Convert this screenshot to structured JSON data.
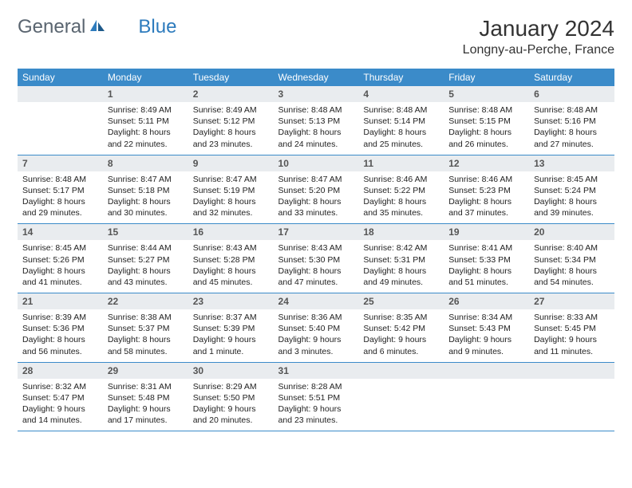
{
  "logo": {
    "text1": "General",
    "text2": "Blue"
  },
  "title": "January 2024",
  "location": "Longny-au-Perche, France",
  "colors": {
    "header_bg": "#3b8bc9",
    "header_text": "#ffffff",
    "daynum_bg": "#e9ecef",
    "rule": "#3b8bc9",
    "logo_gray": "#5a6570",
    "logo_blue": "#2d7bbd"
  },
  "day_headers": [
    "Sunday",
    "Monday",
    "Tuesday",
    "Wednesday",
    "Thursday",
    "Friday",
    "Saturday"
  ],
  "weeks": [
    [
      {
        "n": "",
        "sunrise": "",
        "sunset": "",
        "daylight": ""
      },
      {
        "n": "1",
        "sunrise": "Sunrise: 8:49 AM",
        "sunset": "Sunset: 5:11 PM",
        "daylight": "Daylight: 8 hours and 22 minutes."
      },
      {
        "n": "2",
        "sunrise": "Sunrise: 8:49 AM",
        "sunset": "Sunset: 5:12 PM",
        "daylight": "Daylight: 8 hours and 23 minutes."
      },
      {
        "n": "3",
        "sunrise": "Sunrise: 8:48 AM",
        "sunset": "Sunset: 5:13 PM",
        "daylight": "Daylight: 8 hours and 24 minutes."
      },
      {
        "n": "4",
        "sunrise": "Sunrise: 8:48 AM",
        "sunset": "Sunset: 5:14 PM",
        "daylight": "Daylight: 8 hours and 25 minutes."
      },
      {
        "n": "5",
        "sunrise": "Sunrise: 8:48 AM",
        "sunset": "Sunset: 5:15 PM",
        "daylight": "Daylight: 8 hours and 26 minutes."
      },
      {
        "n": "6",
        "sunrise": "Sunrise: 8:48 AM",
        "sunset": "Sunset: 5:16 PM",
        "daylight": "Daylight: 8 hours and 27 minutes."
      }
    ],
    [
      {
        "n": "7",
        "sunrise": "Sunrise: 8:48 AM",
        "sunset": "Sunset: 5:17 PM",
        "daylight": "Daylight: 8 hours and 29 minutes."
      },
      {
        "n": "8",
        "sunrise": "Sunrise: 8:47 AM",
        "sunset": "Sunset: 5:18 PM",
        "daylight": "Daylight: 8 hours and 30 minutes."
      },
      {
        "n": "9",
        "sunrise": "Sunrise: 8:47 AM",
        "sunset": "Sunset: 5:19 PM",
        "daylight": "Daylight: 8 hours and 32 minutes."
      },
      {
        "n": "10",
        "sunrise": "Sunrise: 8:47 AM",
        "sunset": "Sunset: 5:20 PM",
        "daylight": "Daylight: 8 hours and 33 minutes."
      },
      {
        "n": "11",
        "sunrise": "Sunrise: 8:46 AM",
        "sunset": "Sunset: 5:22 PM",
        "daylight": "Daylight: 8 hours and 35 minutes."
      },
      {
        "n": "12",
        "sunrise": "Sunrise: 8:46 AM",
        "sunset": "Sunset: 5:23 PM",
        "daylight": "Daylight: 8 hours and 37 minutes."
      },
      {
        "n": "13",
        "sunrise": "Sunrise: 8:45 AM",
        "sunset": "Sunset: 5:24 PM",
        "daylight": "Daylight: 8 hours and 39 minutes."
      }
    ],
    [
      {
        "n": "14",
        "sunrise": "Sunrise: 8:45 AM",
        "sunset": "Sunset: 5:26 PM",
        "daylight": "Daylight: 8 hours and 41 minutes."
      },
      {
        "n": "15",
        "sunrise": "Sunrise: 8:44 AM",
        "sunset": "Sunset: 5:27 PM",
        "daylight": "Daylight: 8 hours and 43 minutes."
      },
      {
        "n": "16",
        "sunrise": "Sunrise: 8:43 AM",
        "sunset": "Sunset: 5:28 PM",
        "daylight": "Daylight: 8 hours and 45 minutes."
      },
      {
        "n": "17",
        "sunrise": "Sunrise: 8:43 AM",
        "sunset": "Sunset: 5:30 PM",
        "daylight": "Daylight: 8 hours and 47 minutes."
      },
      {
        "n": "18",
        "sunrise": "Sunrise: 8:42 AM",
        "sunset": "Sunset: 5:31 PM",
        "daylight": "Daylight: 8 hours and 49 minutes."
      },
      {
        "n": "19",
        "sunrise": "Sunrise: 8:41 AM",
        "sunset": "Sunset: 5:33 PM",
        "daylight": "Daylight: 8 hours and 51 minutes."
      },
      {
        "n": "20",
        "sunrise": "Sunrise: 8:40 AM",
        "sunset": "Sunset: 5:34 PM",
        "daylight": "Daylight: 8 hours and 54 minutes."
      }
    ],
    [
      {
        "n": "21",
        "sunrise": "Sunrise: 8:39 AM",
        "sunset": "Sunset: 5:36 PM",
        "daylight": "Daylight: 8 hours and 56 minutes."
      },
      {
        "n": "22",
        "sunrise": "Sunrise: 8:38 AM",
        "sunset": "Sunset: 5:37 PM",
        "daylight": "Daylight: 8 hours and 58 minutes."
      },
      {
        "n": "23",
        "sunrise": "Sunrise: 8:37 AM",
        "sunset": "Sunset: 5:39 PM",
        "daylight": "Daylight: 9 hours and 1 minute."
      },
      {
        "n": "24",
        "sunrise": "Sunrise: 8:36 AM",
        "sunset": "Sunset: 5:40 PM",
        "daylight": "Daylight: 9 hours and 3 minutes."
      },
      {
        "n": "25",
        "sunrise": "Sunrise: 8:35 AM",
        "sunset": "Sunset: 5:42 PM",
        "daylight": "Daylight: 9 hours and 6 minutes."
      },
      {
        "n": "26",
        "sunrise": "Sunrise: 8:34 AM",
        "sunset": "Sunset: 5:43 PM",
        "daylight": "Daylight: 9 hours and 9 minutes."
      },
      {
        "n": "27",
        "sunrise": "Sunrise: 8:33 AM",
        "sunset": "Sunset: 5:45 PM",
        "daylight": "Daylight: 9 hours and 11 minutes."
      }
    ],
    [
      {
        "n": "28",
        "sunrise": "Sunrise: 8:32 AM",
        "sunset": "Sunset: 5:47 PM",
        "daylight": "Daylight: 9 hours and 14 minutes."
      },
      {
        "n": "29",
        "sunrise": "Sunrise: 8:31 AM",
        "sunset": "Sunset: 5:48 PM",
        "daylight": "Daylight: 9 hours and 17 minutes."
      },
      {
        "n": "30",
        "sunrise": "Sunrise: 8:29 AM",
        "sunset": "Sunset: 5:50 PM",
        "daylight": "Daylight: 9 hours and 20 minutes."
      },
      {
        "n": "31",
        "sunrise": "Sunrise: 8:28 AM",
        "sunset": "Sunset: 5:51 PM",
        "daylight": "Daylight: 9 hours and 23 minutes."
      },
      {
        "n": "",
        "sunrise": "",
        "sunset": "",
        "daylight": ""
      },
      {
        "n": "",
        "sunrise": "",
        "sunset": "",
        "daylight": ""
      },
      {
        "n": "",
        "sunrise": "",
        "sunset": "",
        "daylight": ""
      }
    ]
  ]
}
